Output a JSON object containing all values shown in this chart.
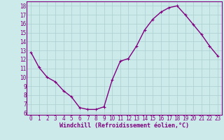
{
  "x": [
    0,
    1,
    2,
    3,
    4,
    5,
    6,
    7,
    8,
    9,
    10,
    11,
    12,
    13,
    14,
    15,
    16,
    17,
    18,
    19,
    20,
    21,
    22,
    23
  ],
  "y": [
    12.8,
    11.1,
    10.0,
    9.5,
    8.5,
    7.8,
    6.6,
    6.4,
    6.4,
    6.7,
    9.7,
    11.8,
    12.1,
    13.5,
    15.3,
    16.5,
    17.3,
    17.8,
    18.0,
    17.0,
    15.9,
    14.8,
    13.5,
    12.4
  ],
  "line_color": "#800080",
  "marker": "+",
  "marker_size": 3,
  "linewidth": 1.0,
  "marker_linewidth": 0.8,
  "xlabel": "Windchill (Refroidissement éolien,°C)",
  "xlabel_fontsize": 6,
  "ylabel_ticks": [
    6,
    7,
    8,
    9,
    10,
    11,
    12,
    13,
    14,
    15,
    16,
    17,
    18
  ],
  "xlim": [
    -0.5,
    23.5
  ],
  "ylim": [
    5.8,
    18.5
  ],
  "bg_color": "#cceaea",
  "grid_color": "#aacece",
  "tick_label_fontsize": 5.5,
  "label_color": "#800080",
  "spine_color": "#800080"
}
